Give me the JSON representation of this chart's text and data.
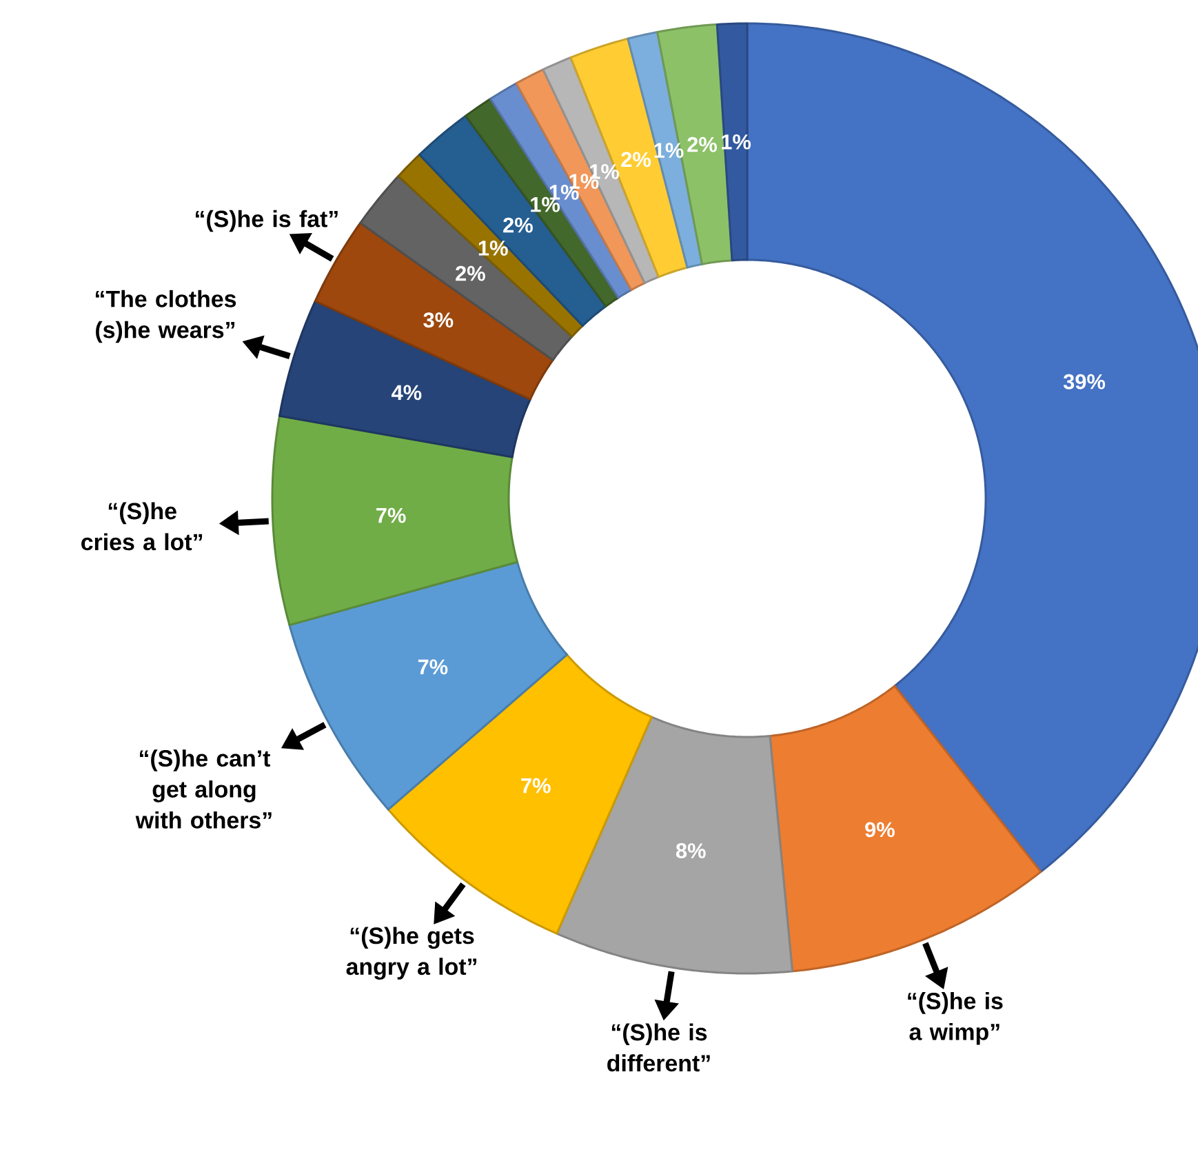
{
  "chart_data": {
    "type": "donut",
    "categories": [
      null,
      "“(S)he is a wimp”",
      "“(S)he is different”",
      "“(S)he gets angry a lot”",
      "“(S)he can’t get along with others”",
      "“(S)he cries a lot”",
      "“The clothes (s)he wears”",
      "“(S)he is fat”",
      null,
      null,
      null,
      null,
      null,
      null,
      null,
      null,
      null,
      null,
      null
    ],
    "values": [
      39,
      9,
      8,
      7,
      7,
      7,
      4,
      3,
      2,
      1,
      2,
      1,
      1,
      1,
      1,
      2,
      1,
      2,
      1
    ],
    "colors": [
      "#4472c4",
      "#ed7d31",
      "#a5a5a5",
      "#ffc000",
      "#5b9bd5",
      "#70ad47",
      "#264478",
      "#9e480e",
      "#636363",
      "#997300",
      "#255e91",
      "#43682b",
      "#698ed0",
      "#f1975a",
      "#b7b7b7",
      "#ffcd33",
      "#7cafdd",
      "#8cc168",
      "#335aa1"
    ],
    "value_labels": [
      "39%",
      "9%",
      "8%",
      "7%",
      "7%",
      "7%",
      "4%",
      "3%",
      "2%",
      "1%",
      "2%",
      "1%",
      "1%",
      "1%",
      "1%",
      "2%",
      "1%",
      "2%",
      "1%"
    ]
  }
}
